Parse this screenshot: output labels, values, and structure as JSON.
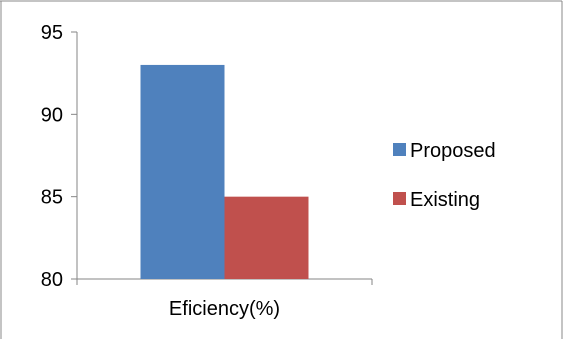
{
  "chart_data": {
    "type": "bar",
    "categories": [
      "Eficiency(%)"
    ],
    "series": [
      {
        "name": "Proposed",
        "values": [
          93
        ],
        "color": "#4F81BD"
      },
      {
        "name": "Existing",
        "values": [
          85
        ],
        "color": "#C0504D"
      }
    ],
    "ylim": [
      80,
      95
    ],
    "yticks": [
      80,
      85,
      90,
      95
    ],
    "grid": false,
    "legend": "right"
  }
}
